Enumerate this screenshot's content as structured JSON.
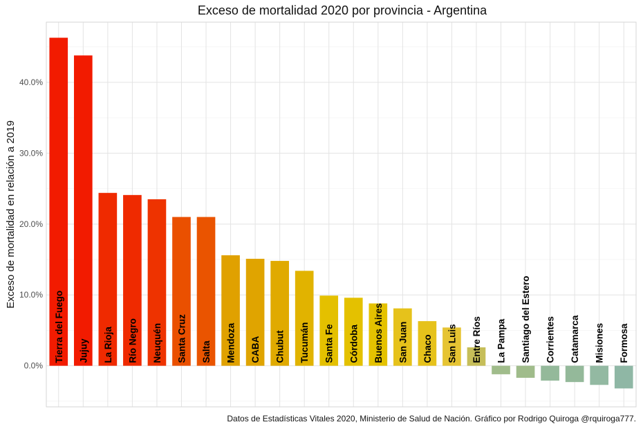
{
  "chart_data": {
    "type": "bar",
    "title": "Exceso de mortalidad 2020 por provincia - Argentina",
    "xlabel": "",
    "ylabel": "Exceso de mortalidad en relación a 2019",
    "caption": "Datos de Estadísticas Vitales 2020, Ministerio de Salud de Nación. Gráfico por Rodrigo Quiroga @rquiroga777.",
    "ylim": [
      -5.8,
      48.5
    ],
    "y_ticks": [
      0,
      10,
      20,
      30,
      40
    ],
    "y_tick_labels": [
      "0.0%",
      "10.0%",
      "20.0%",
      "30.0%",
      "40.0%"
    ],
    "grid": true,
    "legend": "none",
    "categories": [
      "Tierra del Fuego",
      "Jujuy",
      "La Rioja",
      "Río Negro",
      "Neuquén",
      "Santa Cruz",
      "Salta",
      "Mendoza",
      "CABA",
      "Chubut",
      "Tucumán",
      "Santa Fe",
      "Córdoba",
      "Buenos Aires",
      "San Juan",
      "Chaco",
      "San Luis",
      "Entre Ríos",
      "La Pampa",
      "Santiago del Estero",
      "Corrientes",
      "Catamarca",
      "Misiones",
      "Formosa"
    ],
    "values": [
      46.3,
      43.8,
      24.4,
      24.1,
      23.5,
      21.0,
      21.0,
      15.6,
      15.1,
      14.8,
      13.4,
      9.9,
      9.6,
      8.8,
      8.1,
      6.3,
      5.4,
      2.6,
      -1.2,
      -1.7,
      -2.1,
      -2.3,
      -2.7,
      -3.2
    ],
    "colors": [
      "#f21b00",
      "#f21b00",
      "#ef2a00",
      "#ef2a00",
      "#ee3300",
      "#ea5000",
      "#ea5400",
      "#e0a100",
      "#e0a400",
      "#e0aa00",
      "#e1b300",
      "#e4c000",
      "#e4c100",
      "#e4c200",
      "#e6c21b",
      "#e6c21b",
      "#e6c433",
      "#c6be59",
      "#a0bc8b",
      "#a0bc8b",
      "#94b99a",
      "#94b99a",
      "#93b9a2",
      "#8fb7a5"
    ]
  }
}
